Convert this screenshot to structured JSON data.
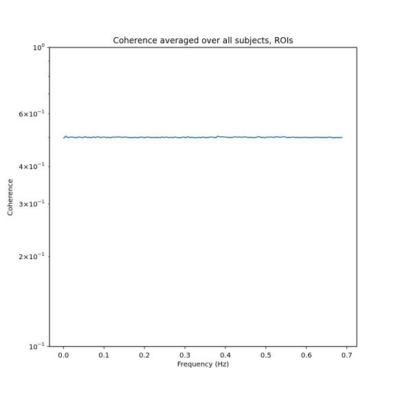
{
  "chart_data": {
    "type": "line",
    "title": "Coherence averaged over all subjects, ROIs",
    "xlabel": "Frequency (Hz)",
    "ylabel": "Coherence",
    "y_scale": "log",
    "xlim": [
      -0.0345,
      0.7245
    ],
    "ylim": [
      0.1,
      1.0
    ],
    "grid": false,
    "x_ticks": [
      {
        "value": 0.0,
        "label": "0.0"
      },
      {
        "value": 0.1,
        "label": "0.1"
      },
      {
        "value": 0.2,
        "label": "0.2"
      },
      {
        "value": 0.3,
        "label": "0.3"
      },
      {
        "value": 0.4,
        "label": "0.4"
      },
      {
        "value": 0.5,
        "label": "0.5"
      },
      {
        "value": 0.6,
        "label": "0.6"
      },
      {
        "value": 0.7,
        "label": "0.7"
      }
    ],
    "y_major_ticks": [
      {
        "value": 0.1,
        "base": "10",
        "exp": "−1"
      },
      {
        "value": 1.0,
        "base": "10",
        "exp": "0"
      }
    ],
    "y_minor_ticks": [
      {
        "value": 0.2,
        "mant": "2",
        "base": "10",
        "exp": "−1"
      },
      {
        "value": 0.3,
        "mant": "3",
        "base": "10",
        "exp": "−1"
      },
      {
        "value": 0.4,
        "mant": "4",
        "base": "10",
        "exp": "−1"
      },
      {
        "value": 0.5
      },
      {
        "value": 0.6,
        "mant": "6",
        "base": "10",
        "exp": "−1"
      },
      {
        "value": 0.7
      },
      {
        "value": 0.8
      },
      {
        "value": 0.9
      }
    ],
    "series": [
      {
        "color": "#1f77b4",
        "x_start": 0.0,
        "x_step": 0.0053,
        "values": [
          0.496,
          0.505,
          0.5,
          0.501,
          0.502,
          0.5,
          0.499,
          0.502,
          0.501,
          0.499,
          0.503,
          0.5,
          0.501,
          0.499,
          0.502,
          0.5,
          0.503,
          0.5,
          0.501,
          0.502,
          0.5,
          0.501,
          0.499,
          0.502,
          0.501,
          0.502,
          0.502,
          0.501,
          0.501,
          0.502,
          0.5,
          0.5,
          0.499,
          0.501,
          0.5,
          0.499,
          0.502,
          0.501,
          0.499,
          0.502,
          0.501,
          0.5,
          0.5,
          0.5,
          0.501,
          0.499,
          0.502,
          0.5,
          0.502,
          0.499,
          0.501,
          0.499,
          0.502,
          0.5,
          0.499,
          0.5,
          0.502,
          0.499,
          0.503,
          0.5,
          0.501,
          0.499,
          0.499,
          0.501,
          0.499,
          0.502,
          0.5,
          0.5,
          0.501,
          0.502,
          0.5,
          0.5,
          0.505,
          0.502,
          0.503,
          0.502,
          0.501,
          0.501,
          0.5,
          0.501,
          0.503,
          0.501,
          0.502,
          0.501,
          0.502,
          0.502,
          0.5,
          0.501,
          0.5,
          0.499,
          0.501,
          0.504,
          0.5,
          0.501,
          0.499,
          0.502,
          0.501,
          0.502,
          0.5,
          0.503,
          0.502,
          0.501,
          0.502,
          0.503,
          0.5,
          0.501,
          0.5,
          0.502,
          0.5,
          0.501,
          0.5,
          0.5,
          0.501,
          0.501,
          0.5,
          0.5,
          0.5,
          0.501,
          0.501,
          0.501,
          0.5,
          0.501,
          0.5,
          0.5,
          0.502,
          0.5,
          0.499,
          0.5,
          0.5,
          0.499,
          0.501
        ]
      }
    ]
  }
}
